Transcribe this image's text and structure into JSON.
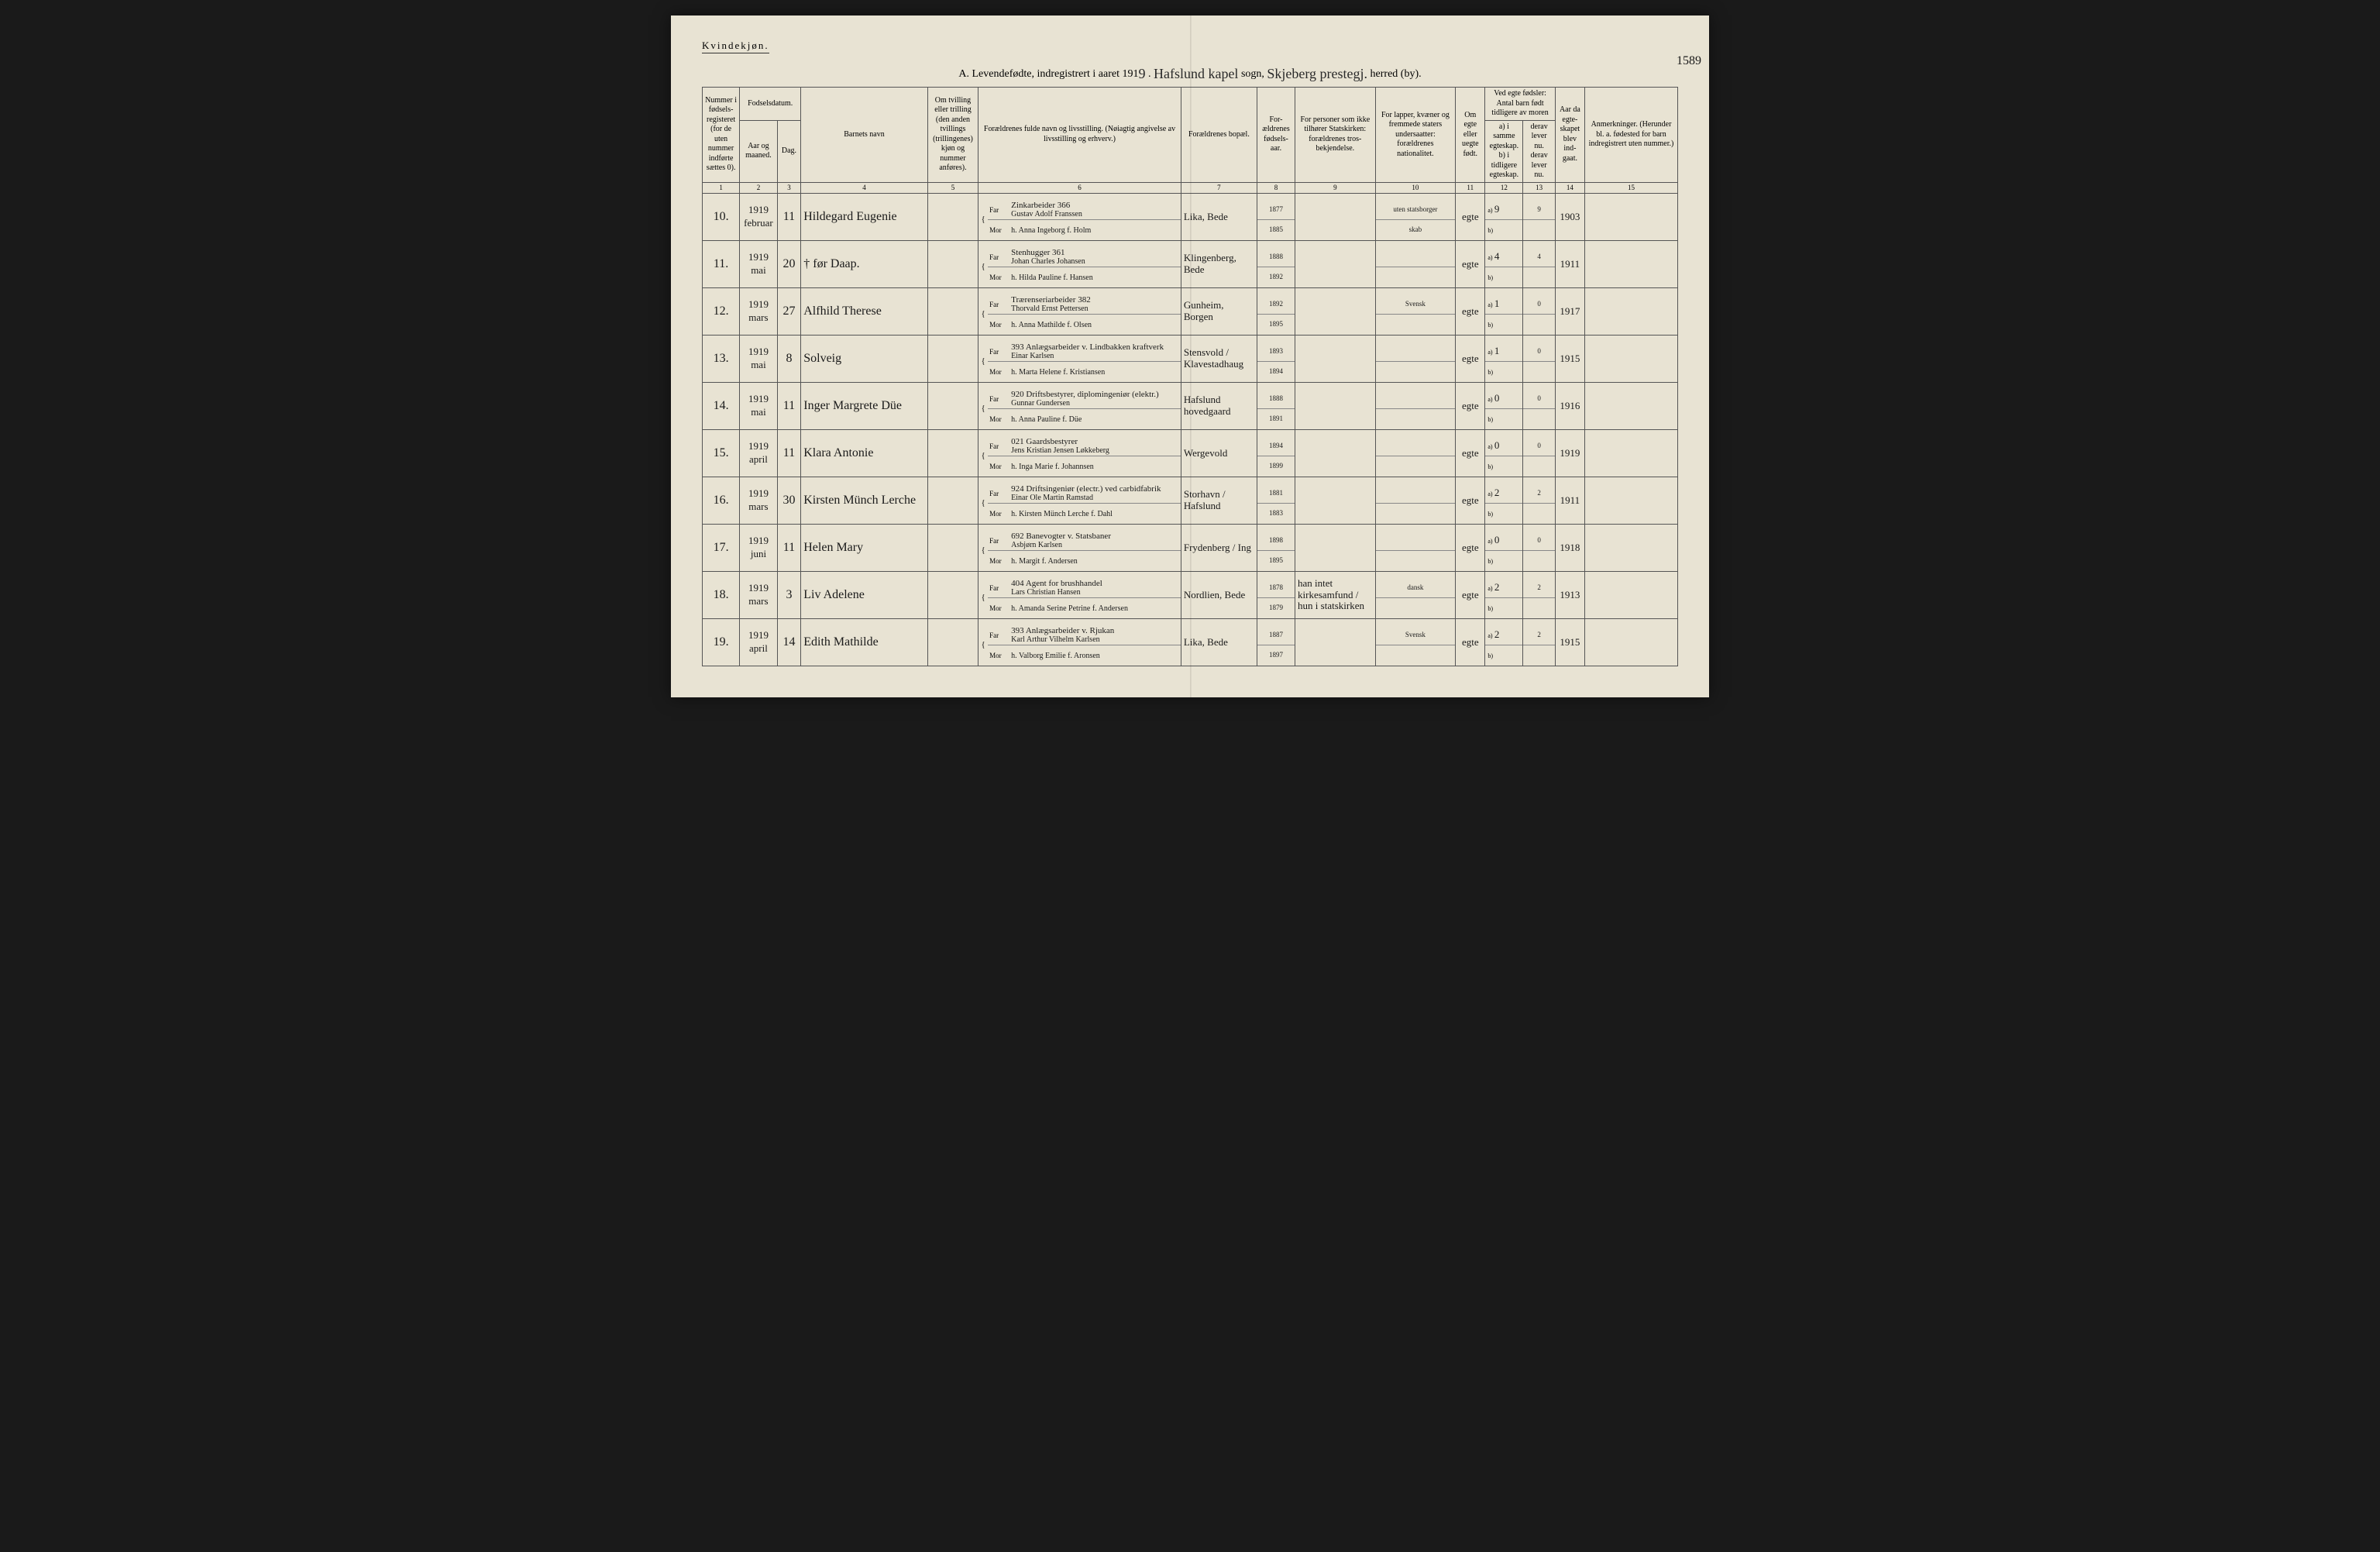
{
  "header": {
    "gender_label": "Kvindekjøn.",
    "title_prefix": "A. Levendefødte, indregistrert i aaret 191",
    "year_suffix": "9",
    "sogn_label": "sogn,",
    "sogn_value": "Hafslund kapel",
    "herred_label": "herred (by).",
    "herred_value": "Skjeberg prestegj.",
    "page_number": "1589"
  },
  "columns": {
    "c1": "Nummer i fødsels-registeret (for de uten nummer indførte sættes 0).",
    "c2_top": "Fodselsdatum.",
    "c2a": "Aar og maaned.",
    "c2b": "Dag.",
    "c4": "Barnets navn",
    "c5": "Om tvilling eller trilling (den anden tvillings (trillingenes) kjøn og nummer anføres).",
    "c6": "Forældrenes fulde navn og livsstilling. (Nøiagtig angivelse av livsstilling og erhverv.)",
    "c7": "Forældrenes bopæl.",
    "c8": "For-ældrenes fødsels-aar.",
    "c9": "For personer som ikke tilhører Statskirken: forældrenes tros-bekjendelse.",
    "c10": "For lapper, kvæner og fremmede staters undersaatter: forældrenes nationalitet.",
    "c11": "Om egte eller uegte født.",
    "c12_top": "Ved egte fødsler: Antal barn født tidligere av moren",
    "c12a": "a) i samme egteskap.",
    "c12b": "b) i tidligere egteskap.",
    "c13a": "derav lever nu.",
    "c13b": "derav lever nu.",
    "c14": "Aar da egte-skapet blev ind-gaat.",
    "c15": "Anmerkninger. (Herunder bl. a. fødested for barn indregistrert uten nummer.)",
    "far": "Far",
    "mor": "Mor"
  },
  "colnums": [
    "1",
    "2",
    "3",
    "4",
    "5",
    "6",
    "7",
    "8",
    "9",
    "10",
    "11",
    "12",
    "13",
    "14",
    "15"
  ],
  "rows": [
    {
      "num": "10.",
      "year": "1919",
      "month": "februar",
      "day": "11",
      "name": "Hildegard Eugenie",
      "occupation": "Zinkarbeider 366",
      "father": "Gustav Adolf Franssen",
      "mother": "h. Anna Ingeborg f. Holm",
      "residence": "Lika, Bede",
      "father_year": "1877",
      "mother_year": "1885",
      "religion": "",
      "nationality_f": "uten statsborger",
      "nationality_m": "skab",
      "legit": "egte",
      "a": "9",
      "a_liv": "9",
      "marriage": "1903"
    },
    {
      "num": "11.",
      "year": "1919",
      "month": "mai",
      "day": "20",
      "name": "† før Daap.",
      "occupation": "Stenhugger 361",
      "father": "Johan Charles Johansen",
      "mother": "h. Hilda Pauline f. Hansen",
      "residence": "Klingenberg, Bede",
      "father_year": "1888",
      "mother_year": "1892",
      "religion": "",
      "nationality_f": "",
      "nationality_m": "",
      "legit": "egte",
      "a": "4",
      "a_liv": "4",
      "marriage": "1911"
    },
    {
      "num": "12.",
      "year": "1919",
      "month": "mars",
      "day": "27",
      "name": "Alfhild Therese",
      "occupation": "Trærenseriarbeider 382",
      "father": "Thorvald Ernst Pettersen",
      "mother": "h. Anna Mathilde f. Olsen",
      "residence": "Gunheim, Borgen",
      "father_year": "1892",
      "mother_year": "1895",
      "religion": "",
      "nationality_f": "Svensk",
      "nationality_m": "",
      "legit": "egte",
      "a": "1",
      "a_liv": "0",
      "marriage": "1917"
    },
    {
      "num": "13.",
      "year": "1919",
      "month": "mai",
      "day": "8",
      "name": "Solveig",
      "occupation": "393 Anlægsarbeider v. Lindbakken kraftverk",
      "father": "Einar Karlsen",
      "mother": "h. Marta Helene f. Kristiansen",
      "residence": "Stensvold / Klavestadhaug",
      "father_year": "1893",
      "mother_year": "1894",
      "religion": "",
      "nationality_f": "",
      "nationality_m": "",
      "legit": "egte",
      "a": "1",
      "a_liv": "0",
      "marriage": "1915"
    },
    {
      "num": "14.",
      "year": "1919",
      "month": "mai",
      "day": "11",
      "name": "Inger Margrete Düe",
      "occupation": "920 Driftsbestyrer, diplomingeniør (elektr.)",
      "father": "Gunnar Gundersen",
      "mother": "h. Anna Pauline f. Düe",
      "residence": "Hafslund hovedgaard",
      "father_year": "1888",
      "mother_year": "1891",
      "religion": "",
      "nationality_f": "",
      "nationality_m": "",
      "legit": "egte",
      "a": "0",
      "a_liv": "0",
      "marriage": "1916"
    },
    {
      "num": "15.",
      "year": "1919",
      "month": "april",
      "day": "11",
      "name": "Klara Antonie",
      "occupation": "021 Gaardsbestyrer",
      "father": "Jens Kristian Jensen Løkkeberg",
      "mother": "h. Inga Marie f. Johannsen",
      "residence": "Wergevold",
      "father_year": "1894",
      "mother_year": "1899",
      "religion": "",
      "nationality_f": "",
      "nationality_m": "",
      "legit": "egte",
      "a": "0",
      "a_liv": "0",
      "marriage": "1919"
    },
    {
      "num": "16.",
      "year": "1919",
      "month": "mars",
      "day": "30",
      "name": "Kirsten Münch Lerche",
      "occupation": "924 Driftsingeniør (electr.) ved carbidfabrik",
      "father": "Einar Ole Martin Ramstad",
      "mother": "h. Kirsten Münch Lerche f. Dahl",
      "residence": "Storhavn / Hafslund",
      "father_year": "1881",
      "mother_year": "1883",
      "religion": "",
      "nationality_f": "",
      "nationality_m": "",
      "legit": "egte",
      "a": "2",
      "a_liv": "2",
      "marriage": "1911"
    },
    {
      "num": "17.",
      "year": "1919",
      "month": "juni",
      "day": "11",
      "name": "Helen Mary",
      "occupation": "692 Banevogter v. Statsbaner",
      "father": "Asbjørn Karlsen",
      "mother": "h. Margit f. Andersen",
      "residence": "Frydenberg / Ing",
      "father_year": "1898",
      "mother_year": "1895",
      "religion": "",
      "nationality_f": "",
      "nationality_m": "",
      "legit": "egte",
      "a": "0",
      "a_liv": "0",
      "marriage": "1918"
    },
    {
      "num": "18.",
      "year": "1919",
      "month": "mars",
      "day": "3",
      "name": "Liv Adelene",
      "occupation": "404 Agent for brushhandel",
      "father": "Lars Christian Hansen",
      "mother": "h. Amanda Serine Petrine f. Andersen",
      "residence": "Nordlien, Bede",
      "father_year": "1878",
      "mother_year": "1879",
      "religion": "han intet kirkesamfund / hun i statskirken",
      "nationality_f": "dansk",
      "nationality_m": "",
      "legit": "egte",
      "a": "2",
      "a_liv": "2",
      "marriage": "1913"
    },
    {
      "num": "19.",
      "year": "1919",
      "month": "april",
      "day": "14",
      "name": "Edith Mathilde",
      "occupation": "393 Anlægsarbeider v. Rjukan",
      "father": "Karl Arthur Vilhelm Karlsen",
      "mother": "h. Valborg Emilie f. Aronsen",
      "residence": "Lika, Bede",
      "father_year": "1887",
      "mother_year": "1897",
      "religion": "",
      "nationality_f": "Svensk",
      "nationality_m": "",
      "legit": "egte",
      "a": "2",
      "a_liv": "2",
      "marriage": "1915"
    }
  ],
  "style": {
    "paper_bg": "#e8e3d3",
    "ink": "#1a1a1a",
    "border": "#555555",
    "handwriting_font": "Brush Script MT"
  }
}
